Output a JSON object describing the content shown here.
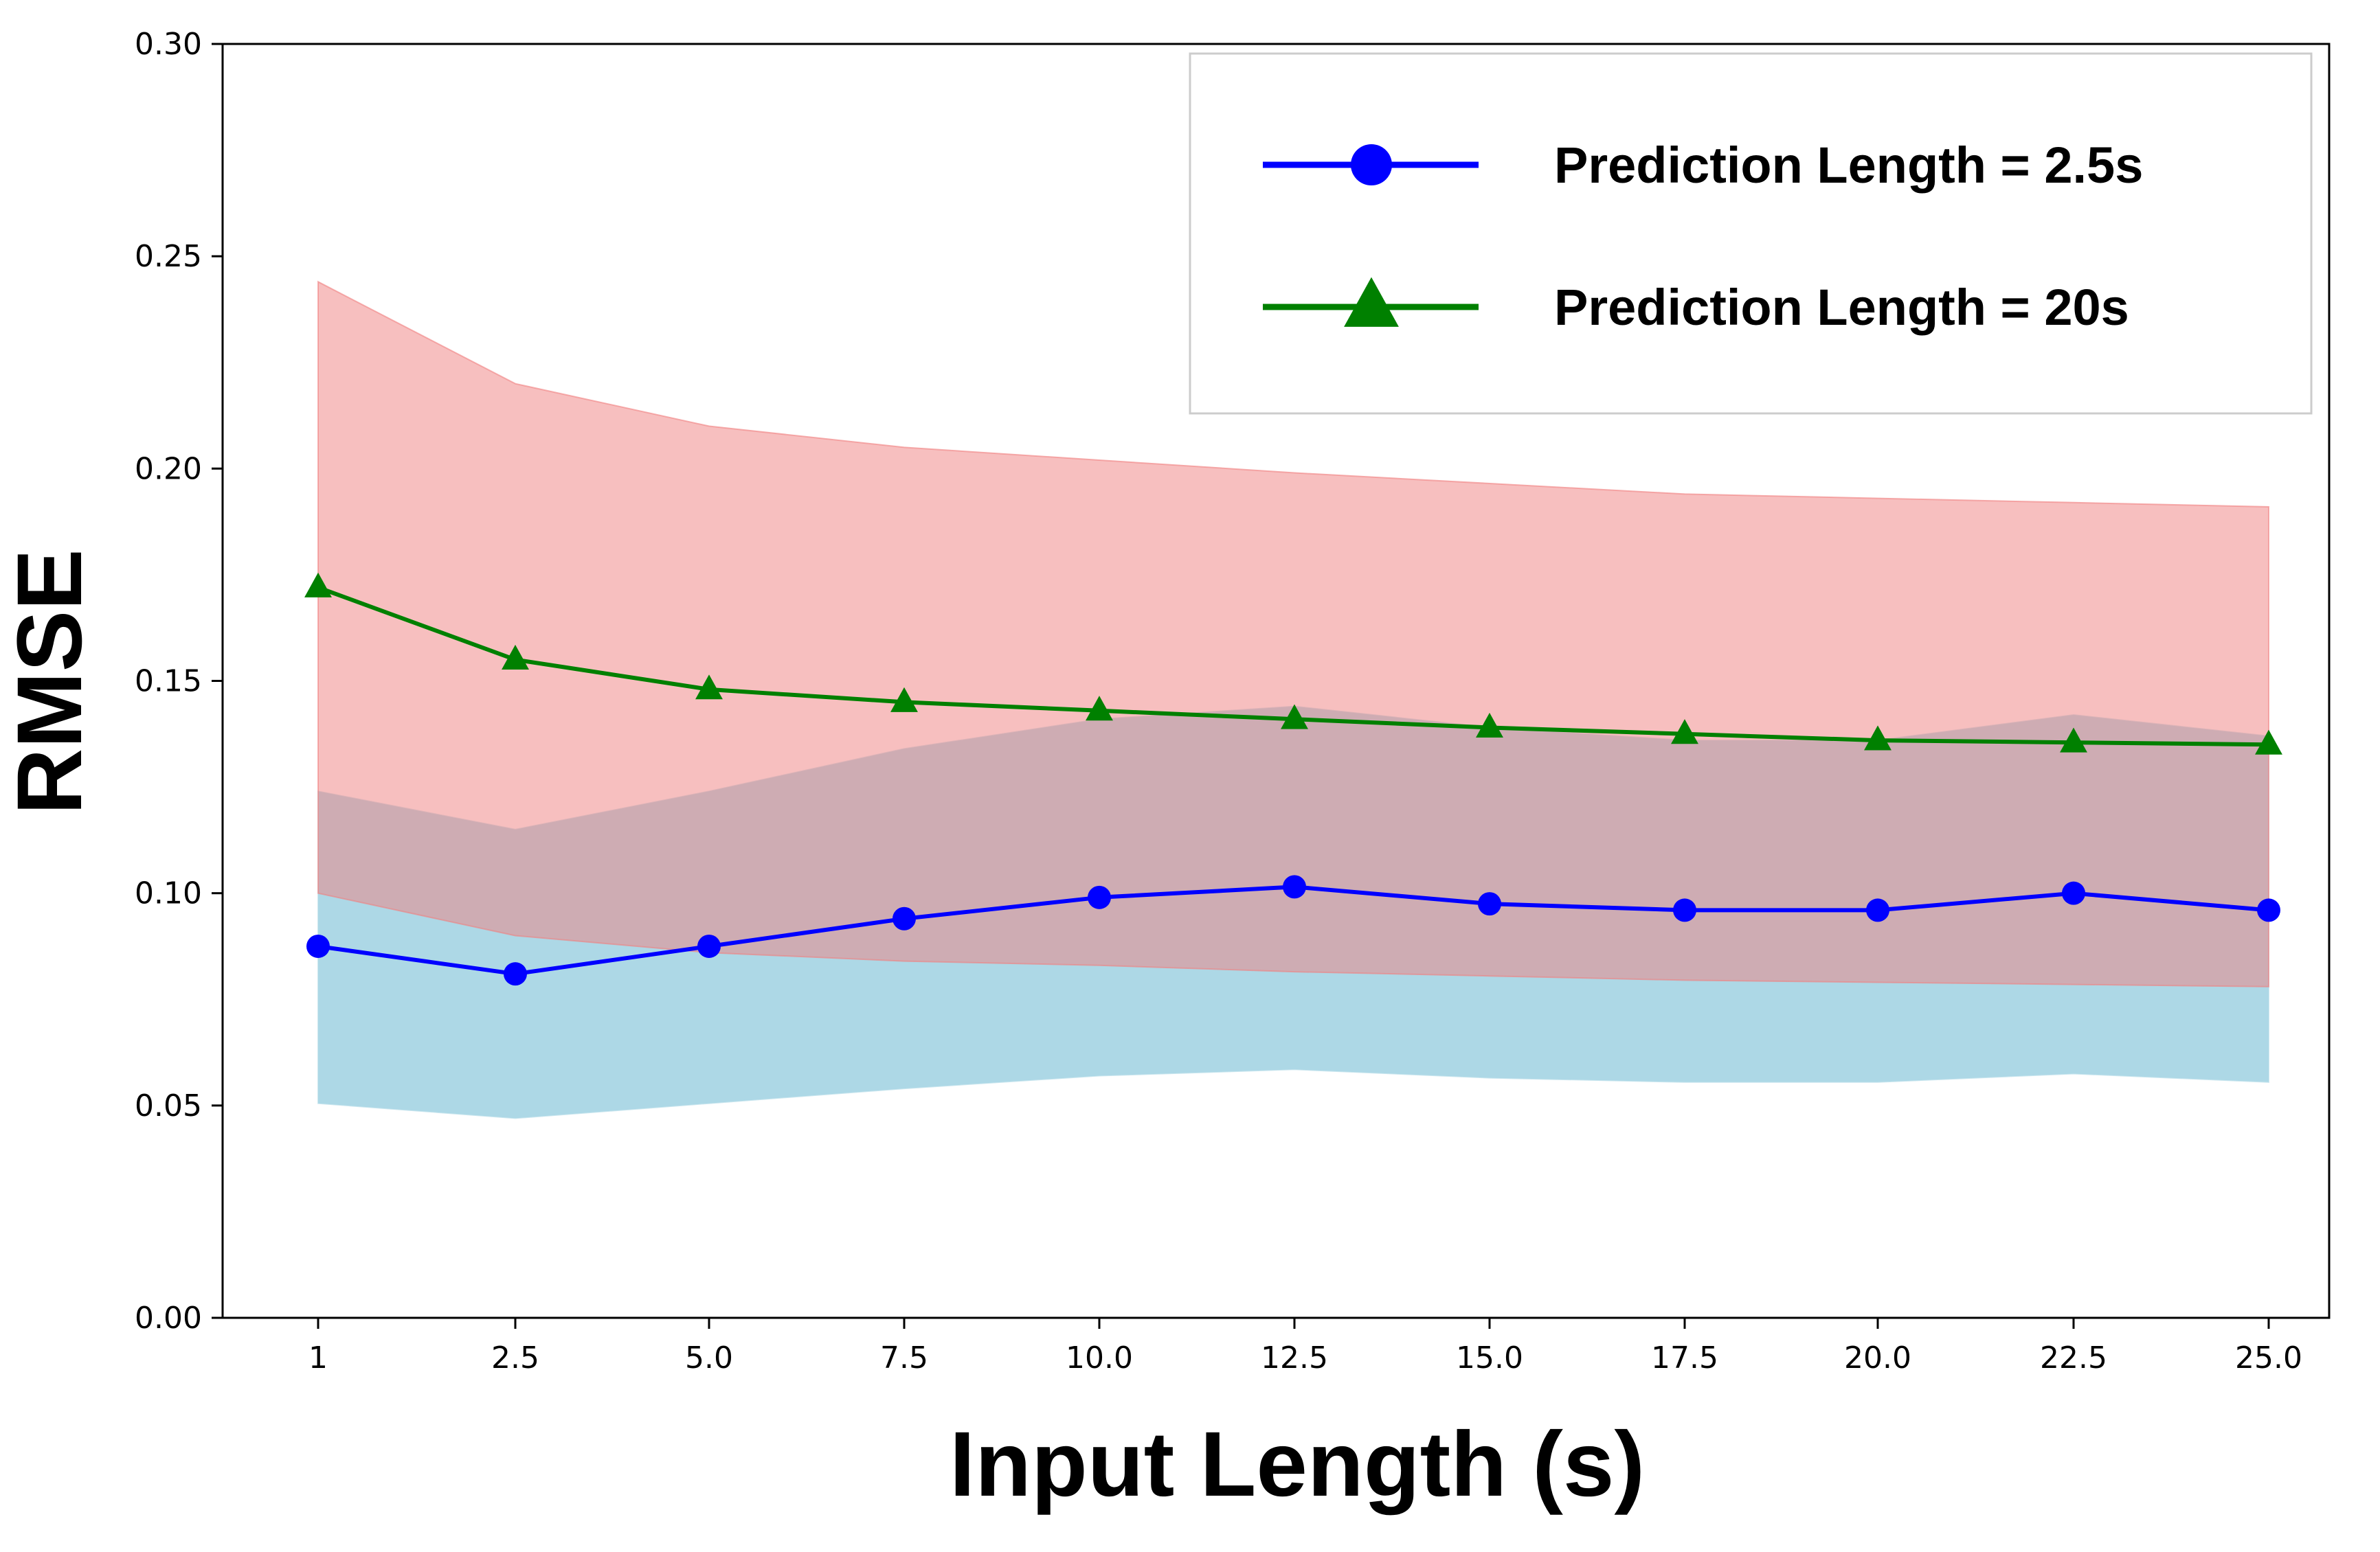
{
  "chart_data": {
    "type": "line",
    "title": "",
    "xlabel": "Input Length (s)",
    "ylabel": "RMSE",
    "categories": [
      "1",
      "2.5",
      "5.0",
      "7.5",
      "10.0",
      "12.5",
      "15.0",
      "17.5",
      "20.0",
      "22.5",
      "25.0"
    ],
    "ylim": [
      0,
      0.3
    ],
    "yticks": [
      "0.00",
      "0.05",
      "0.10",
      "0.15",
      "0.20",
      "0.25",
      "0.30"
    ],
    "grid": false,
    "legend_position": "top-right",
    "series": [
      {
        "name": "Prediction Length = 2.5s",
        "color": "#0000ff",
        "marker": "circle",
        "values": [
          0.0875,
          0.081,
          0.0875,
          0.094,
          0.099,
          0.1015,
          0.0975,
          0.096,
          0.096,
          0.1,
          0.096
        ],
        "band_color": "#add8e6",
        "band_lower": [
          0.0505,
          0.047,
          0.0505,
          0.054,
          0.057,
          0.0585,
          0.0565,
          0.0555,
          0.0555,
          0.0575,
          0.0555
        ],
        "band_upper": [
          0.124,
          0.115,
          0.124,
          0.134,
          0.141,
          0.144,
          0.139,
          0.136,
          0.136,
          0.142,
          0.137
        ]
      },
      {
        "name": "Prediction Length = 20s",
        "color": "#008000",
        "marker": "triangle",
        "values": [
          0.172,
          0.155,
          0.148,
          0.145,
          0.143,
          0.141,
          0.139,
          0.1375,
          0.136,
          0.1355,
          0.135
        ],
        "band_color": "#f08080",
        "band_lower": [
          0.1,
          0.09,
          0.086,
          0.084,
          0.083,
          0.0815,
          0.0805,
          0.0795,
          0.079,
          0.0785,
          0.078
        ],
        "band_upper": [
          0.244,
          0.22,
          0.21,
          0.205,
          0.202,
          0.199,
          0.1965,
          0.194,
          0.193,
          0.192,
          0.191
        ]
      }
    ]
  }
}
